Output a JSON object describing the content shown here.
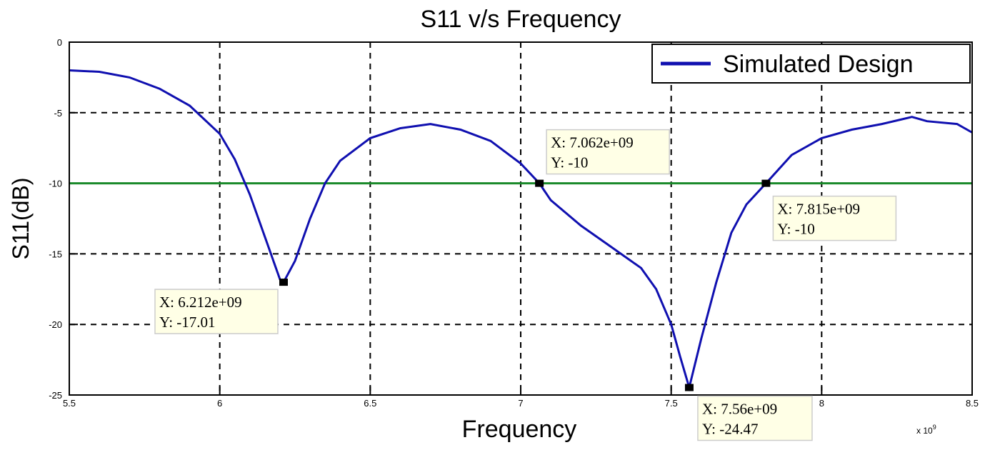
{
  "chart_data": {
    "type": "line",
    "title": "S11 v/s Frequency",
    "xlabel": "Frequency",
    "ylabel": "S11(dB)",
    "x_multiplier": "x 10",
    "x_multiplier_exp": "9",
    "xlim": [
      5.5,
      8.5
    ],
    "ylim": [
      -25,
      0
    ],
    "xticks": [
      "5.5",
      "6",
      "6.5",
      "7",
      "7.5",
      "8",
      "8.5"
    ],
    "yticks": [
      "0",
      "-5",
      "-10",
      "-15",
      "-20",
      "-25"
    ],
    "grid": true,
    "legend_position": "top-right",
    "series": [
      {
        "name": "Simulated Design",
        "color": "#1010b0",
        "x": [
          5.5,
          5.6,
          5.7,
          5.8,
          5.9,
          6.0,
          6.05,
          6.1,
          6.15,
          6.2,
          6.212,
          6.25,
          6.3,
          6.35,
          6.4,
          6.5,
          6.6,
          6.7,
          6.8,
          6.9,
          7.0,
          7.062,
          7.1,
          7.2,
          7.3,
          7.4,
          7.45,
          7.5,
          7.53,
          7.56,
          7.6,
          7.65,
          7.7,
          7.75,
          7.815,
          7.9,
          8.0,
          8.1,
          8.2,
          8.3,
          8.35,
          8.45,
          8.5
        ],
        "y": [
          -2,
          -2.1,
          -2.5,
          -3.3,
          -4.5,
          -6.5,
          -8.3,
          -10.8,
          -13.8,
          -16.8,
          -17.01,
          -15.5,
          -12.5,
          -10,
          -8.4,
          -6.8,
          -6.1,
          -5.8,
          -6.2,
          -7,
          -8.6,
          -10,
          -11.2,
          -13,
          -14.5,
          -16,
          -17.5,
          -20,
          -22.3,
          -24.47,
          -21,
          -17,
          -13.5,
          -11.5,
          -10,
          -8,
          -6.8,
          -6.2,
          -5.8,
          -5.3,
          -5.6,
          -5.8,
          -6.4
        ]
      }
    ],
    "reference_line": {
      "y": -10,
      "color": "#1a8a2a"
    },
    "datatips": [
      {
        "x": 6.212,
        "y": -17.01,
        "x_label": "X: 6.212e+09",
        "y_label": "Y: -17.01"
      },
      {
        "x": 7.062,
        "y": -10,
        "x_label": "X: 7.062e+09",
        "y_label": "Y: -10"
      },
      {
        "x": 7.815,
        "y": -10,
        "x_label": "X: 7.815e+09",
        "y_label": "Y: -10"
      },
      {
        "x": 7.56,
        "y": -24.47,
        "x_label": "X: 7.56e+09",
        "y_label": "Y: -24.47"
      }
    ]
  }
}
